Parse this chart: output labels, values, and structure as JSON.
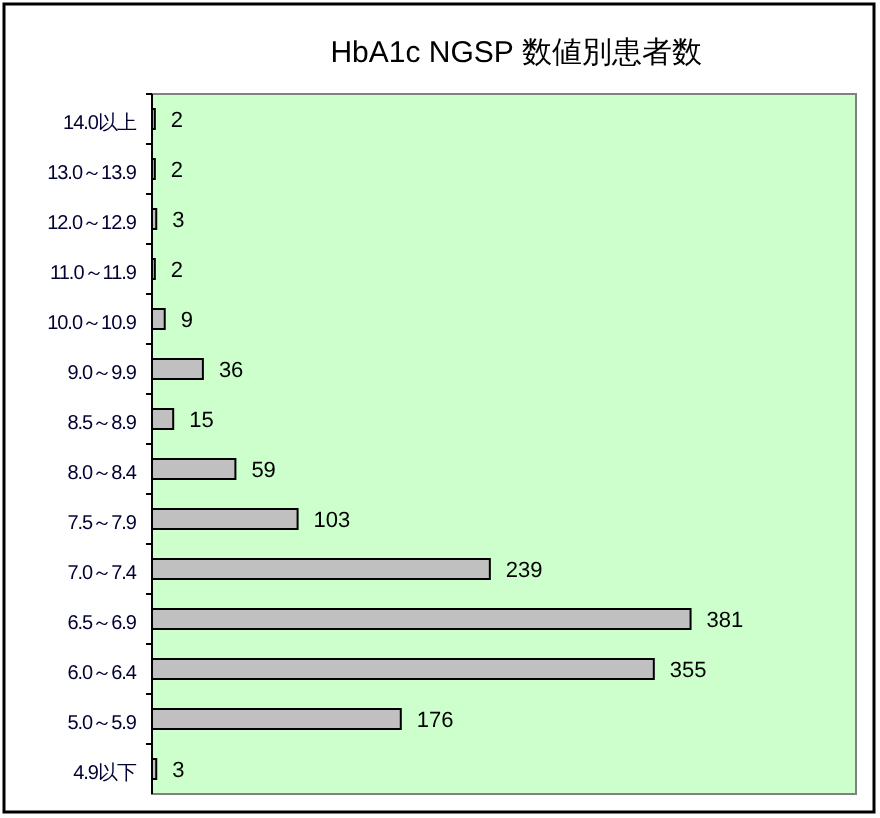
{
  "chart_data": {
    "type": "bar",
    "orientation": "horizontal",
    "title": "HbA1c NGSP 数値別患者数",
    "categories": [
      "14.0以上",
      "13.0～13.9",
      "12.0～12.9",
      "11.0～11.9",
      "10.0～10.9",
      "9.0～9.9",
      "8.5～8.9",
      "8.0～8.4",
      "7.5～7.9",
      "7.0～7.4",
      "6.5～6.9",
      "6.0～6.4",
      "5.0～5.9",
      "4.9以下"
    ],
    "values": [
      2,
      2,
      3,
      2,
      9,
      36,
      15,
      59,
      103,
      239,
      381,
      355,
      176,
      3
    ],
    "color": "#c0c0c0",
    "data_labels": true
  }
}
